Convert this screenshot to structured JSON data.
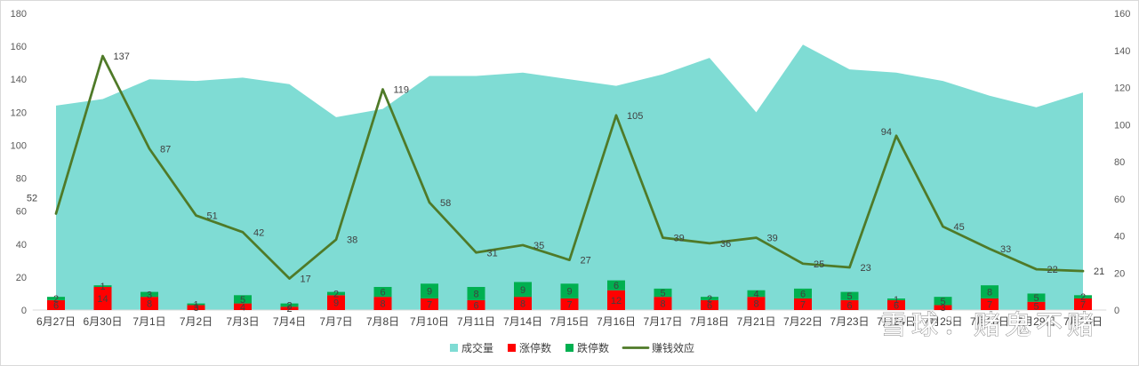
{
  "chart_data": {
    "type": "bar",
    "categories": [
      "6月27日",
      "6月30日",
      "7月1日",
      "7月2日",
      "7月3日",
      "7月4日",
      "7月7日",
      "7月8日",
      "7月10日",
      "7月11日",
      "7月14日",
      "7月15日",
      "7月16日",
      "7月17日",
      "7月18日",
      "7月21日",
      "7月22日",
      "7月23日",
      "7月24日",
      "7月25日",
      "7月28日",
      "7月29日",
      "7月30日"
    ],
    "series": [
      {
        "name": "成交量",
        "type": "area",
        "axis": "left",
        "color": "#7fdcd4",
        "values": [
          124,
          128,
          140,
          139,
          141,
          137,
          117,
          122,
          142,
          142,
          144,
          140,
          136,
          143,
          153,
          120,
          161,
          146,
          144,
          139,
          130,
          123,
          132
        ]
      },
      {
        "name": "涨停数",
        "type": "stacked-bar",
        "axis": "left",
        "color": "#ff0000",
        "values": [
          6,
          14,
          8,
          3,
          4,
          2,
          9,
          8,
          7,
          6,
          8,
          7,
          12,
          8,
          6,
          8,
          7,
          6,
          6,
          3,
          7,
          5,
          7
        ]
      },
      {
        "name": "跌停数",
        "type": "stacked-bar",
        "axis": "left",
        "color": "#00b050",
        "values": [
          2,
          1,
          3,
          1,
          5,
          2,
          2,
          6,
          9,
          8,
          9,
          9,
          6,
          5,
          2,
          4,
          6,
          5,
          1,
          5,
          8,
          5,
          2
        ]
      },
      {
        "name": "赚钱效应",
        "type": "line",
        "axis": "right",
        "color": "#4f7a28",
        "values": [
          52,
          137,
          87,
          51,
          42,
          17,
          38,
          119,
          58,
          31,
          35,
          27,
          105,
          39,
          36,
          39,
          25,
          23,
          94,
          45,
          33,
          22,
          21
        ]
      }
    ],
    "y_left": {
      "range": [
        0,
        180
      ],
      "ticks": [
        0,
        20,
        40,
        60,
        80,
        100,
        120,
        140,
        160,
        180
      ]
    },
    "y_right": {
      "range": [
        0,
        160
      ],
      "ticks": [
        0,
        20,
        40,
        60,
        80,
        100,
        120,
        140,
        160
      ]
    },
    "grid": false,
    "legend": "bottom",
    "data_labels": true
  },
  "watermark": "雪球：赌鬼不赌"
}
